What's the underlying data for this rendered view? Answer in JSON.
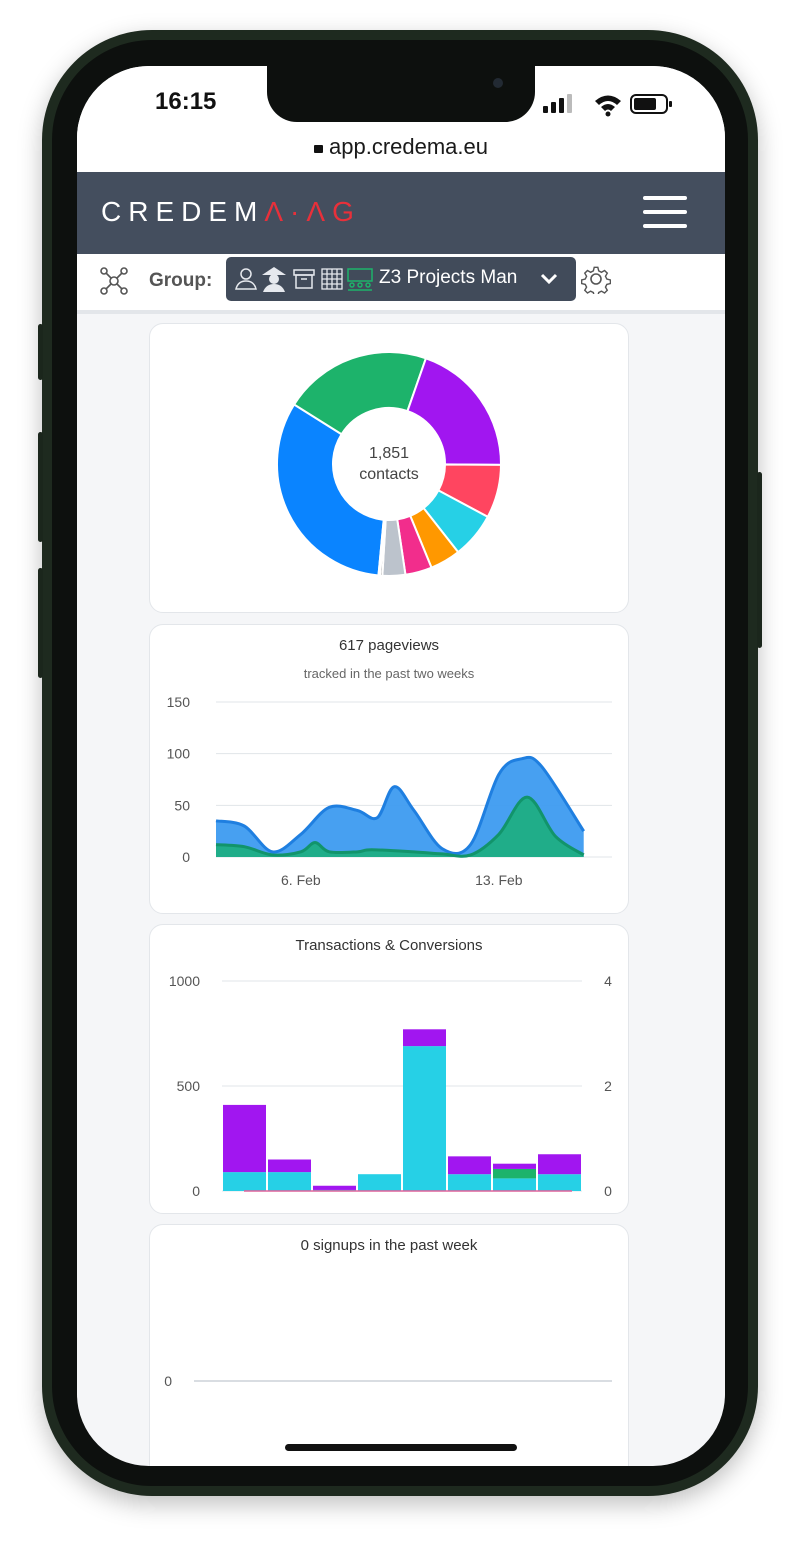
{
  "status_bar": {
    "time": "16:15"
  },
  "browser": {
    "url": "app.credema.eu"
  },
  "navbar": {
    "logo_main": "CREDEM",
    "logo_accent": "Λ·ΛG",
    "menu_icon": "hamburger-icon"
  },
  "group_bar": {
    "label": "Group:",
    "selected_group": "Z3 Projects Man",
    "icons": [
      "network-icon",
      "user-outline-icon",
      "spy-icon",
      "archive-icon",
      "calendar-icon",
      "team-icon"
    ],
    "gear_icon": "gear-icon"
  },
  "contacts_card": {
    "count": "1,851",
    "unit": "contacts",
    "chart_data": {
      "type": "pie",
      "donut": true,
      "slices": [
        {
          "color": "#0a84ff",
          "value": 29.5
        },
        {
          "color": "#1db36b",
          "value": 19.5
        },
        {
          "color": "#a116f0",
          "value": 18.0
        },
        {
          "color": "#ff4560",
          "value": 7.0
        },
        {
          "color": "#26d0e6",
          "value": 6.0
        },
        {
          "color": "#ff9800",
          "value": 4.0
        },
        {
          "color": "#f22d8c",
          "value": 3.5
        },
        {
          "color": "#bcc3cc",
          "value": 3.0
        },
        {
          "color": "#2b2b2b",
          "value": 0.3
        },
        {
          "color": "#1db36b",
          "value": 0.2
        }
      ]
    }
  },
  "pageviews_card": {
    "title": "617 pageviews",
    "subtitle": "tracked in the past two weeks",
    "chart_data": {
      "type": "area",
      "y_ticks": [
        "150",
        "100",
        "50",
        "0"
      ],
      "x_ticks": [
        {
          "label": "6. Feb",
          "x": 4
        },
        {
          "label": "13. Feb",
          "x": 11
        }
      ],
      "ylim": [
        0,
        150
      ],
      "xlim": [
        1,
        15
      ],
      "series": [
        {
          "color": "#3d9bf0",
          "points": [
            [
              1,
              35
            ],
            [
              2,
              30
            ],
            [
              3,
              5
            ],
            [
              4,
              22
            ],
            [
              5,
              48
            ],
            [
              6,
              45
            ],
            [
              6.7,
              38
            ],
            [
              7.3,
              68
            ],
            [
              8,
              45
            ],
            [
              9,
              8
            ],
            [
              10,
              12
            ],
            [
              11,
              80
            ],
            [
              11.8,
              95
            ],
            [
              12.5,
              88
            ],
            [
              14,
              25
            ]
          ]
        },
        {
          "color": "#1fae83",
          "points": [
            [
              1,
              12
            ],
            [
              2,
              10
            ],
            [
              3,
              2
            ],
            [
              4,
              5
            ],
            [
              4.5,
              14
            ],
            [
              5,
              5
            ],
            [
              6,
              5
            ],
            [
              6.5,
              7
            ],
            [
              8,
              5
            ],
            [
              9,
              3
            ],
            [
              10,
              2
            ],
            [
              11,
              22
            ],
            [
              12,
              58
            ],
            [
              13,
              20
            ],
            [
              14,
              2
            ]
          ]
        }
      ]
    }
  },
  "transactions_card": {
    "title": "Transactions & Conversions",
    "chart_data": {
      "type": "bar",
      "stacked": true,
      "y_left_ticks": [
        "1000",
        "500",
        "0"
      ],
      "y_right_ticks": [
        "4",
        "2",
        "0"
      ],
      "ylim": [
        0,
        1000
      ],
      "bars": [
        {
          "cyan": 90,
          "green": 0,
          "purple": 320
        },
        {
          "cyan": 90,
          "green": 0,
          "purple": 60
        },
        {
          "cyan": 5,
          "green": 0,
          "purple": 20
        },
        {
          "cyan": 80,
          "green": 0,
          "purple": 0
        },
        {
          "cyan": 690,
          "green": 0,
          "purple": 80
        },
        {
          "cyan": 80,
          "green": 0,
          "purple": 85
        },
        {
          "cyan": 60,
          "green": 45,
          "purple": 25
        },
        {
          "cyan": 80,
          "green": 0,
          "purple": 95
        }
      ],
      "colors": {
        "cyan": "#26d0e6",
        "green": "#1db36b",
        "purple": "#a116f0"
      }
    }
  },
  "signups_card": {
    "title": "0 signups in the past week",
    "chart_data": {
      "type": "line",
      "y_ticks": [
        "0"
      ],
      "values": []
    }
  }
}
